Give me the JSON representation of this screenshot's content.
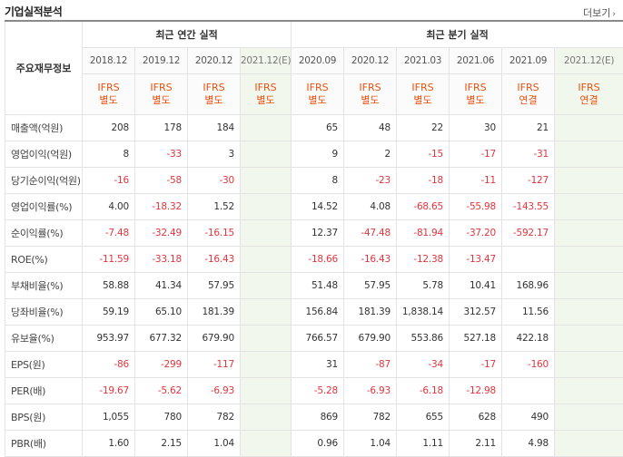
{
  "header": {
    "title": "기업실적분석",
    "more_label": "더보기"
  },
  "table": {
    "corner_label": "주요재무정보",
    "annual_group": "최근 연간 실적",
    "quarter_group": "최근 분기 실적",
    "periods": [
      "2018.12",
      "2019.12",
      "2020.12",
      "2021.12(E)",
      "2020.09",
      "2020.12",
      "2021.03",
      "2021.06",
      "2021.09",
      "2021.12(E)"
    ],
    "standards": [
      [
        "IFRS",
        "별도"
      ],
      [
        "IFRS",
        "별도"
      ],
      [
        "IFRS",
        "별도"
      ],
      [
        "IFRS",
        "별도"
      ],
      [
        "IFRS",
        "별도"
      ],
      [
        "IFRS",
        "별도"
      ],
      [
        "IFRS",
        "별도"
      ],
      [
        "IFRS",
        "별도"
      ],
      [
        "IFRS",
        "연결"
      ],
      [
        "IFRS",
        "연결"
      ]
    ],
    "rows": [
      {
        "label": "매출액(억원)",
        "values": [
          "208",
          "178",
          "184",
          "",
          "65",
          "48",
          "22",
          "30",
          "21",
          ""
        ]
      },
      {
        "label": "영업이익(억원)",
        "values": [
          "8",
          "-33",
          "3",
          "",
          "9",
          "2",
          "-15",
          "-17",
          "-31",
          ""
        ]
      },
      {
        "label": "당기순이익(억원)",
        "values": [
          "-16",
          "-58",
          "-30",
          "",
          "8",
          "-23",
          "-18",
          "-11",
          "-127",
          ""
        ]
      },
      {
        "label": "영업이익률(%)",
        "values": [
          "4.00",
          "-18.32",
          "1.52",
          "",
          "14.52",
          "4.08",
          "-68.65",
          "-55.98",
          "-143.55",
          ""
        ]
      },
      {
        "label": "순이익률(%)",
        "values": [
          "-7.48",
          "-32.49",
          "-16.15",
          "",
          "12.37",
          "-47.48",
          "-81.94",
          "-37.20",
          "-592.17",
          ""
        ]
      },
      {
        "label": "ROE(%)",
        "values": [
          "-11.59",
          "-33.18",
          "-16.43",
          "",
          "-18.66",
          "-16.43",
          "-12.38",
          "-13.47",
          "",
          ""
        ]
      },
      {
        "label": "부채비율(%)",
        "values": [
          "58.88",
          "41.34",
          "57.95",
          "",
          "51.48",
          "57.95",
          "5.78",
          "10.41",
          "168.96",
          ""
        ]
      },
      {
        "label": "당좌비율(%)",
        "values": [
          "59.19",
          "65.10",
          "181.39",
          "",
          "156.84",
          "181.39",
          "1,838.14",
          "312.57",
          "11.56",
          ""
        ]
      },
      {
        "label": "유보율(%)",
        "values": [
          "953.97",
          "677.32",
          "679.90",
          "",
          "766.57",
          "679.90",
          "553.86",
          "527.18",
          "422.18",
          ""
        ]
      },
      {
        "label": "EPS(원)",
        "values": [
          "-86",
          "-299",
          "-117",
          "",
          "31",
          "-87",
          "-34",
          "-17",
          "-160",
          ""
        ]
      },
      {
        "label": "PER(배)",
        "values": [
          "-19.67",
          "-5.62",
          "-6.93",
          "",
          "-5.28",
          "-6.93",
          "-6.18",
          "-12.98",
          "",
          ""
        ]
      },
      {
        "label": "BPS(원)",
        "values": [
          "1,055",
          "780",
          "782",
          "",
          "869",
          "782",
          "655",
          "628",
          "490",
          ""
        ]
      },
      {
        "label": "PBR(배)",
        "values": [
          "1.60",
          "2.15",
          "1.04",
          "",
          "0.96",
          "1.04",
          "1.11",
          "2.11",
          "4.98",
          ""
        ]
      }
    ]
  },
  "colors": {
    "negative": "#e4343d",
    "standard": "#e8500f",
    "estimate_bg": "#f2f7ee"
  }
}
